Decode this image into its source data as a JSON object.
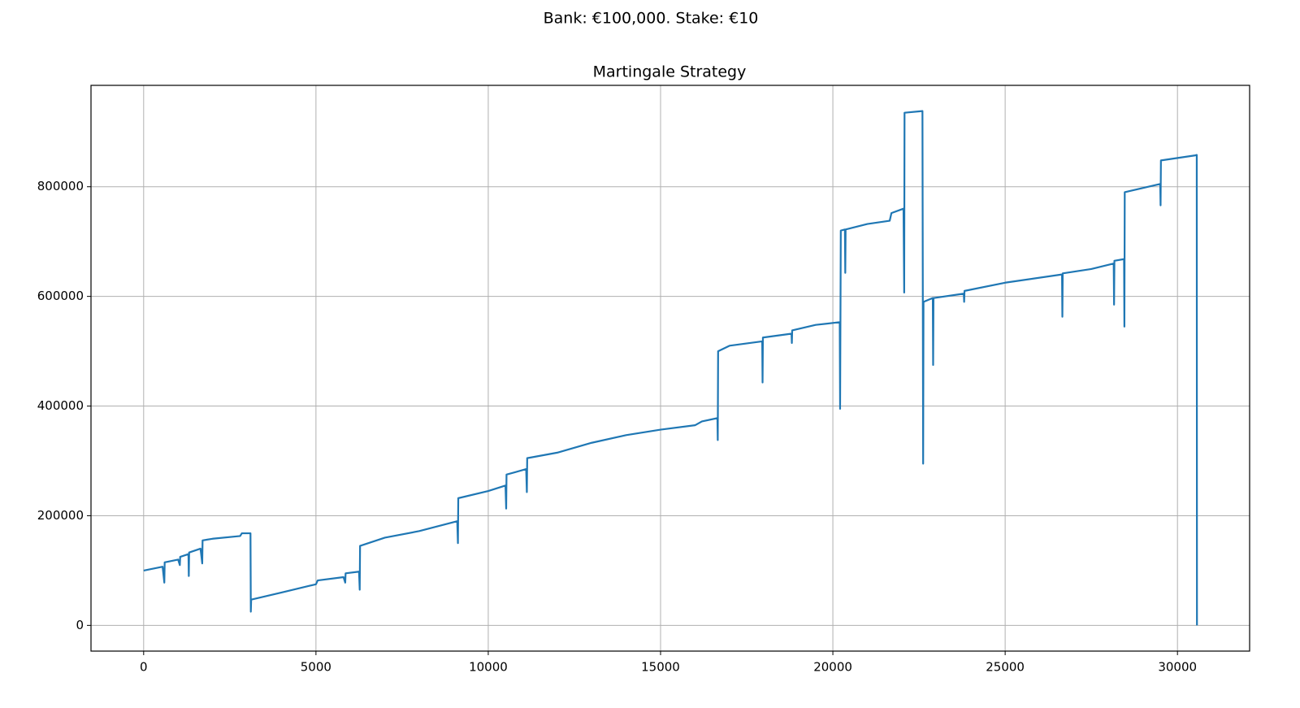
{
  "chart_data": {
    "type": "line",
    "suptitle": "Bank: €100,000. Stake: €10",
    "title": "Martingale Strategy",
    "x": [
      0,
      550,
      600,
      610,
      1000,
      1050,
      1060,
      1300,
      1310,
      1320,
      1650,
      1700,
      1710,
      2000,
      2800,
      2850,
      3100,
      3110,
      3120,
      4000,
      5000,
      5050,
      5800,
      5850,
      5860,
      6250,
      6270,
      6280,
      7000,
      8000,
      9100,
      9120,
      9130,
      10000,
      10500,
      10520,
      10530,
      11100,
      11120,
      11130,
      12000,
      13000,
      14000,
      15000,
      16000,
      16200,
      16650,
      16660,
      16670,
      17000,
      17950,
      17960,
      17970,
      18800,
      18810,
      18820,
      19500,
      20200,
      20210,
      20230,
      20350,
      20360,
      20370,
      21000,
      21650,
      21700,
      22050,
      22070,
      22080,
      22600,
      22620,
      22630,
      22900,
      22910,
      22920,
      23800,
      23810,
      23820,
      25000,
      26650,
      26660,
      26670,
      27500,
      28150,
      28160,
      28170,
      28450,
      28460,
      28470,
      29500,
      29510,
      29520,
      30500,
      30560,
      30566
    ],
    "series": [
      {
        "name": "Martingale Strategy",
        "color": "#1f77b4",
        "values": [
          100000,
          107000,
          78000,
          115000,
          120000,
          110000,
          125000,
          130000,
          90000,
          133000,
          140000,
          113000,
          155000,
          158000,
          163000,
          168000,
          168000,
          25000,
          47000,
          60000,
          75000,
          82000,
          88000,
          78000,
          95000,
          98000,
          65000,
          145000,
          160000,
          172000,
          190000,
          150000,
          232000,
          245000,
          255000,
          213000,
          275000,
          285000,
          243000,
          305000,
          315000,
          333000,
          347000,
          357000,
          365000,
          372000,
          378000,
          338000,
          500000,
          510000,
          518000,
          443000,
          525000,
          532000,
          515000,
          538000,
          548000,
          553000,
          395000,
          720000,
          722000,
          643000,
          722000,
          732000,
          738000,
          752000,
          760000,
          607000,
          935000,
          938000,
          295000,
          590000,
          597000,
          475000,
          597000,
          605000,
          590000,
          610000,
          625000,
          640000,
          563000,
          642000,
          650000,
          660000,
          585000,
          665000,
          668000,
          545000,
          790000,
          805000,
          766000,
          848000,
          857000,
          858000,
          0
        ]
      }
    ],
    "xlim": [
      -1528,
      32094
    ],
    "ylim": [
      -46900,
      984900
    ],
    "xticks": [
      0,
      5000,
      10000,
      15000,
      20000,
      25000,
      30000
    ],
    "yticks": [
      0,
      200000,
      400000,
      600000,
      800000
    ],
    "grid": true
  }
}
